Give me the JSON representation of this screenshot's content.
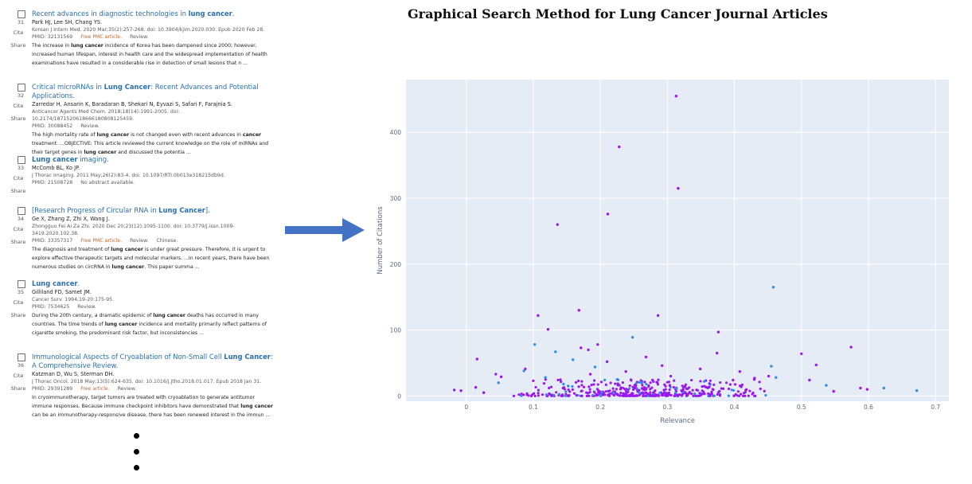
{
  "results": [
    {
      "number": "31",
      "title": [
        {
          "t": "Recent advances in diagnostic technologies in "
        },
        {
          "t": "lung cancer",
          "b": true
        },
        {
          "t": "."
        }
      ],
      "authors": "Park HJ, Lee SH, Chang YS.",
      "journal": "Korean J Intern Med. 2020 Mar;35(2):257-268. doi: 10.3904/kjim.2020.030. Epub 2020 Feb 28.",
      "pmid": "PMID: 32131569",
      "pmc": "Free PMC article.",
      "tags": [
        "Review."
      ],
      "snippet": [
        {
          "t": "The increase in "
        },
        {
          "t": "lung cancer",
          "b": true
        },
        {
          "t": " incidence of Korea has been dampened since 2000; however, increased human lifespan, interest in health care and the widespread implementation of health examinations have resulted in a considerable rise in detection of small lesions that n ..."
        }
      ]
    },
    {
      "number": "32",
      "title": [
        {
          "t": "Critical microRNAs in "
        },
        {
          "t": "Lung Cancer",
          "b": true
        },
        {
          "t": ": Recent Advances and Potential Applications."
        }
      ],
      "authors": "Zarredar H, Ansarin K, Baradaran B, Shekari N, Eyvazi S, Safari F, Farajnia S.",
      "journal": "Anticancer Agents Med Chem. 2018;18(14):1991-2005. doi: 10.2174/1871520618666180808125459.",
      "pmid": "PMID: 30088452",
      "pmc": "",
      "tags": [
        "Review."
      ],
      "snippet": [
        {
          "t": "The high mortality rate of "
        },
        {
          "t": "lung cancer",
          "b": true
        },
        {
          "t": " is not changed even with recent advances in "
        },
        {
          "t": "cancer",
          "b": true
        },
        {
          "t": " treatment. ...OBJECTIVE: This article reviewed the current knowledge on the role of miRNAs and their target genes in "
        },
        {
          "t": "lung cancer",
          "b": true
        },
        {
          "t": " and discussed the potentia ..."
        }
      ]
    },
    {
      "number": "33",
      "title": [
        {
          "t": "Lung cancer",
          "b": true
        },
        {
          "t": " imaging."
        }
      ],
      "authors": "McComb BL, Ko JP.",
      "journal": "J Thorac Imaging. 2011 May;26(2):83-4. doi: 10.1097/RTI.0b013e318215db9d.",
      "pmid": "PMID: 21508728",
      "pmc": "",
      "tags": [
        "No abstract available."
      ],
      "snippet": []
    },
    {
      "number": "34",
      "title": [
        {
          "t": "[Research Progress of Circular RNA in "
        },
        {
          "t": "Lung Cancer",
          "b": true
        },
        {
          "t": "]."
        }
      ],
      "authors": "Ge X, Zhang Z, Zhi X, Wang J.",
      "journal": "Zhongguo Fei Ai Za Zhi. 2020 Dec 20;23(12):1095-1100. doi: 10.3779/j.issn.1009-3419.2020.102.38.",
      "pmid": "PMID: 33357317",
      "pmc": "Free PMC article.",
      "tags": [
        "Review.",
        "Chinese."
      ],
      "snippet": [
        {
          "t": "The diagnosis and treatment of "
        },
        {
          "t": "lung cancer",
          "b": true
        },
        {
          "t": " is under great pressure. Therefore, it is urgent to explore effective therapeutic targets and molecular markers. ...In recent years, there have been numerous studies on circRNA in "
        },
        {
          "t": "lung cancer",
          "b": true
        },
        {
          "t": ". This paper summa ..."
        }
      ]
    },
    {
      "number": "35",
      "title": [
        {
          "t": "Lung cancer",
          "b": true
        },
        {
          "t": "."
        }
      ],
      "authors": "Gilliland FD, Samet JM.",
      "journal": "Cancer Surv. 1994;19-20:175-95.",
      "pmid": "PMID: 7534625",
      "pmc": "",
      "tags": [
        "Review."
      ],
      "snippet": [
        {
          "t": "During the 20th century, a dramatic epidemic of "
        },
        {
          "t": "lung cancer",
          "b": true
        },
        {
          "t": " deaths has occurred in many countries. The time trends of "
        },
        {
          "t": "lung cancer",
          "b": true
        },
        {
          "t": " incidence and mortality primarily reflect patterns of cigarette smoking, the predominant risk factor, but inconsistencies ..."
        }
      ]
    },
    {
      "number": "36",
      "title": [
        {
          "t": "Immunological Aspects of Cryoablation of Non-Small Cell "
        },
        {
          "t": "Lung Cancer",
          "b": true
        },
        {
          "t": ": A Comprehensive Review."
        }
      ],
      "authors": "Katzman D, Wu S, Sterman DH.",
      "journal": "J Thorac Oncol. 2018 May;13(5):624-635. doi: 10.1016/j.jtho.2018.01.017. Epub 2018 Jan 31.",
      "pmid": "PMID: 29391289",
      "pmc": "Free article.",
      "tags": [
        "Review."
      ],
      "snippet": [
        {
          "t": "In cryoimmunotherapy, target tumors are treated with cryoablation to generate antitumor immune responses. Because immune checkpoint inhibitors have demonstrated that "
        },
        {
          "t": "lung cancer",
          "b": true
        },
        {
          "t": " can be an immunotherapy-responsive disease, there has been renewed interest in the immun ..."
        }
      ]
    }
  ],
  "labels": {
    "cite": "Cite",
    "share": "Share"
  },
  "page_title": "Graphical Search Method for Lung Cancer Journal Articles",
  "colors": {
    "link": "#2a6fb2",
    "free_article": "#c0662a",
    "arrow": "#4472c4",
    "plot_bg": "#e5ecf6",
    "point_purple": "#9b17f0",
    "point_blue": "#2f8ee5"
  },
  "chart_data": {
    "type": "scatter",
    "title": "Graphical Search Method for Lung Cancer Journal Articles",
    "xlabel": "Relevance",
    "ylabel": "Number of Citations",
    "xlim": [
      -0.09,
      0.72
    ],
    "ylim": [
      -8,
      480
    ],
    "xticks": [
      "0",
      "0.1",
      "0.2",
      "0.3",
      "0.4",
      "0.5",
      "0.6",
      "0.7"
    ],
    "yticks": [
      "0",
      "100",
      "200",
      "300",
      "400"
    ],
    "grid": true,
    "points": [
      {
        "x": 0.313,
        "y": 455,
        "c": "purple"
      },
      {
        "x": 0.228,
        "y": 378,
        "c": "purple"
      },
      {
        "x": 0.316,
        "y": 315,
        "c": "purple"
      },
      {
        "x": 0.211,
        "y": 276,
        "c": "purple"
      },
      {
        "x": 0.136,
        "y": 260,
        "c": "purple"
      },
      {
        "x": 0.458,
        "y": 165,
        "c": "blue"
      },
      {
        "x": 0.168,
        "y": 130,
        "c": "purple"
      },
      {
        "x": 0.107,
        "y": 122,
        "c": "purple"
      },
      {
        "x": 0.286,
        "y": 122,
        "c": "purple"
      },
      {
        "x": 0.122,
        "y": 101,
        "c": "purple"
      },
      {
        "x": 0.376,
        "y": 97,
        "c": "purple"
      },
      {
        "x": 0.248,
        "y": 89,
        "c": "blue"
      },
      {
        "x": 0.102,
        "y": 78,
        "c": "blue"
      },
      {
        "x": 0.196,
        "y": 78,
        "c": "purple"
      },
      {
        "x": 0.171,
        "y": 73,
        "c": "purple"
      },
      {
        "x": 0.182,
        "y": 70,
        "c": "purple"
      },
      {
        "x": 0.574,
        "y": 74,
        "c": "purple"
      },
      {
        "x": 0.133,
        "y": 67,
        "c": "blue"
      },
      {
        "x": 0.5,
        "y": 64,
        "c": "purple"
      },
      {
        "x": 0.374,
        "y": 65,
        "c": "purple"
      },
      {
        "x": 0.268,
        "y": 59,
        "c": "purple"
      },
      {
        "x": 0.016,
        "y": 56,
        "c": "purple"
      },
      {
        "x": 0.159,
        "y": 55,
        "c": "blue"
      },
      {
        "x": 0.21,
        "y": 52,
        "c": "purple"
      },
      {
        "x": 0.522,
        "y": 47,
        "c": "purple"
      },
      {
        "x": 0.292,
        "y": 46,
        "c": "purple"
      },
      {
        "x": 0.455,
        "y": 45,
        "c": "blue"
      },
      {
        "x": 0.192,
        "y": 44,
        "c": "blue"
      },
      {
        "x": 0.088,
        "y": 41,
        "c": "purple"
      },
      {
        "x": 0.349,
        "y": 41,
        "c": "purple"
      },
      {
        "x": 0.086,
        "y": 38,
        "c": "blue"
      },
      {
        "x": 0.238,
        "y": 37,
        "c": "purple"
      },
      {
        "x": 0.408,
        "y": 37,
        "c": "purple"
      },
      {
        "x": 0.044,
        "y": 33,
        "c": "purple"
      },
      {
        "x": 0.052,
        "y": 29,
        "c": "purple"
      },
      {
        "x": 0.451,
        "y": 30,
        "c": "purple"
      },
      {
        "x": 0.462,
        "y": 28,
        "c": "blue"
      },
      {
        "x": 0.512,
        "y": 24,
        "c": "purple"
      },
      {
        "x": 0.048,
        "y": 20,
        "c": "blue"
      },
      {
        "x": 0.537,
        "y": 16,
        "c": "blue"
      },
      {
        "x": 0.623,
        "y": 12,
        "c": "blue"
      },
      {
        "x": 0.672,
        "y": 8,
        "c": "blue"
      },
      {
        "x": 0.598,
        "y": 10,
        "c": "purple"
      },
      {
        "x": 0.588,
        "y": 12,
        "c": "purple"
      },
      {
        "x": 0.548,
        "y": 7,
        "c": "purple"
      },
      {
        "x": -0.018,
        "y": 9,
        "c": "purple"
      },
      {
        "x": -0.008,
        "y": 8,
        "c": "purple"
      },
      {
        "x": 0.014,
        "y": 13,
        "c": "purple"
      },
      {
        "x": 0.026,
        "y": 5,
        "c": "purple"
      },
      {
        "x": 0.145,
        "y": 18,
        "c": "blue"
      },
      {
        "x": 0.152,
        "y": 15,
        "c": "blue"
      },
      {
        "x": 0.262,
        "y": 20,
        "c": "blue"
      },
      {
        "x": 0.355,
        "y": 22,
        "c": "blue"
      },
      {
        "x": 0.225,
        "y": 25,
        "c": "blue"
      },
      {
        "x": 0.118,
        "y": 28,
        "c": "blue"
      },
      {
        "x": 0.43,
        "y": 27,
        "c": "purple"
      },
      {
        "x": 0.398,
        "y": 24,
        "c": "purple"
      },
      {
        "x": 0.305,
        "y": 30,
        "c": "purple"
      },
      {
        "x": 0.185,
        "y": 33,
        "c": "purple"
      }
    ],
    "dense_cluster": {
      "x_range": [
        0.06,
        0.47
      ],
      "y_range": [
        0,
        25
      ],
      "count": 420
    },
    "seed": 7
  }
}
